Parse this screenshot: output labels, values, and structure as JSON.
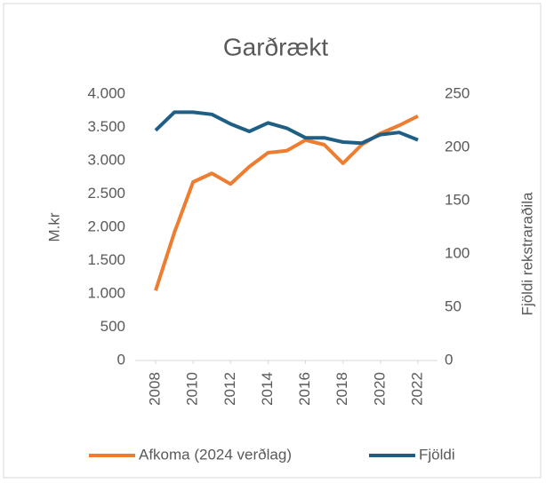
{
  "chart_data": {
    "type": "line",
    "title": "Garðrækt",
    "y_label": "M.kr",
    "y2_label": "Fjöldi rekstraraðila",
    "x": [
      2008,
      2009,
      2010,
      2011,
      2012,
      2013,
      2014,
      2015,
      2016,
      2017,
      2018,
      2019,
      2020,
      2021,
      2022
    ],
    "xlim": [
      2008,
      2022
    ],
    "xticks": [
      2008,
      2010,
      2012,
      2014,
      2016,
      2018,
      2020,
      2022
    ],
    "ylim": [
      0,
      4000
    ],
    "yticks": [
      0,
      500,
      {
        "value": 1000,
        "label": "1.000"
      },
      {
        "value": 1500,
        "label": "1.500"
      },
      {
        "value": 2000,
        "label": "2.000"
      },
      {
        "value": 2500,
        "label": "2.500"
      },
      {
        "value": 3000,
        "label": "3.000"
      },
      {
        "value": 3500,
        "label": "3.500"
      },
      {
        "value": 4000,
        "label": "4.000"
      }
    ],
    "y2lim": [
      0,
      250
    ],
    "y2ticks": [
      0,
      50,
      100,
      150,
      200,
      250
    ],
    "legend": "bottom",
    "series": [
      {
        "name": "Afkoma (2024 verðlag)",
        "color": "#ed7d31",
        "values": [
          1050,
          1920,
          2680,
          2810,
          2650,
          2910,
          3120,
          3150,
          3310,
          3240,
          2960,
          3240,
          3410,
          3530,
          3670
        ]
      },
      {
        "name": "Fjöldi",
        "color": "#1f5f86",
        "axis": "y2",
        "values": [
          216,
          233,
          233,
          231,
          222,
          215,
          223,
          218,
          209,
          209,
          205,
          204,
          212,
          214,
          207
        ]
      }
    ]
  }
}
